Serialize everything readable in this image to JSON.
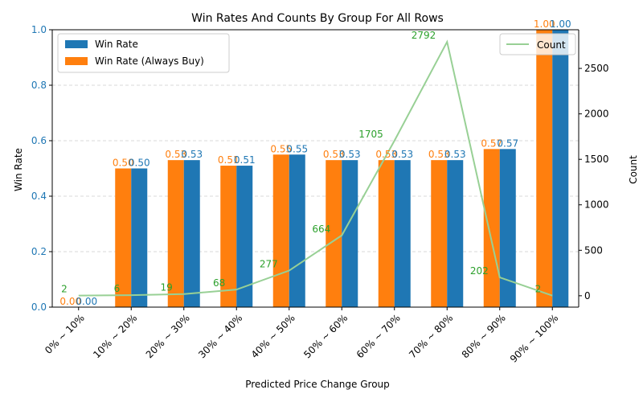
{
  "chart_data": {
    "type": "bar",
    "title": "Win Rates And Counts By Group For All Rows",
    "xlabel": "Predicted Price Change Group",
    "ylabel": "Win Rate",
    "y2label": "Count",
    "categories": [
      "0% ~ 10%",
      "10% ~ 20%",
      "20% ~ 30%",
      "30% ~ 40%",
      "40% ~ 50%",
      "50% ~ 60%",
      "60% ~ 70%",
      "70% ~ 80%",
      "80% ~ 90%",
      "90% ~ 100%"
    ],
    "series": [
      {
        "name": "Win Rate (Always Buy)",
        "values": [
          0.0,
          0.5,
          0.53,
          0.51,
          0.55,
          0.53,
          0.53,
          0.53,
          0.57,
          1.0
        ],
        "labels": [
          "0.00",
          "0.50",
          "0.53",
          "0.51",
          "0.55",
          "0.53",
          "0.53",
          "0.53",
          "0.57",
          "1.00"
        ],
        "color": "#ff7f0e"
      },
      {
        "name": "Win Rate",
        "values": [
          0.0,
          0.5,
          0.53,
          0.51,
          0.55,
          0.53,
          0.53,
          0.53,
          0.57,
          1.0
        ],
        "labels": [
          "0.00",
          "0.50",
          "0.53",
          "0.51",
          "0.55",
          "0.53",
          "0.53",
          "0.53",
          "0.57",
          "1.00"
        ],
        "color": "#1f77b4"
      }
    ],
    "count_series": {
      "name": "Count",
      "values": [
        2,
        6,
        19,
        68,
        277,
        664,
        1705,
        2792,
        202,
        2
      ],
      "color": "#98d095",
      "label_color": "#2ca02c"
    },
    "ylim": [
      0,
      1.0
    ],
    "yticks": [
      "0.0",
      "0.2",
      "0.4",
      "0.6",
      "0.8",
      "1.0"
    ],
    "y2lim": [
      -125,
      2925
    ],
    "y2ticks": [
      "0",
      "500",
      "1000",
      "1500",
      "2000",
      "2500"
    ],
    "y_tick_color": "#1f77b4",
    "grid": "dashed horizontal",
    "legend_left": [
      "Win Rate",
      "Win Rate (Always Buy)"
    ],
    "legend_right": [
      "Count"
    ]
  }
}
